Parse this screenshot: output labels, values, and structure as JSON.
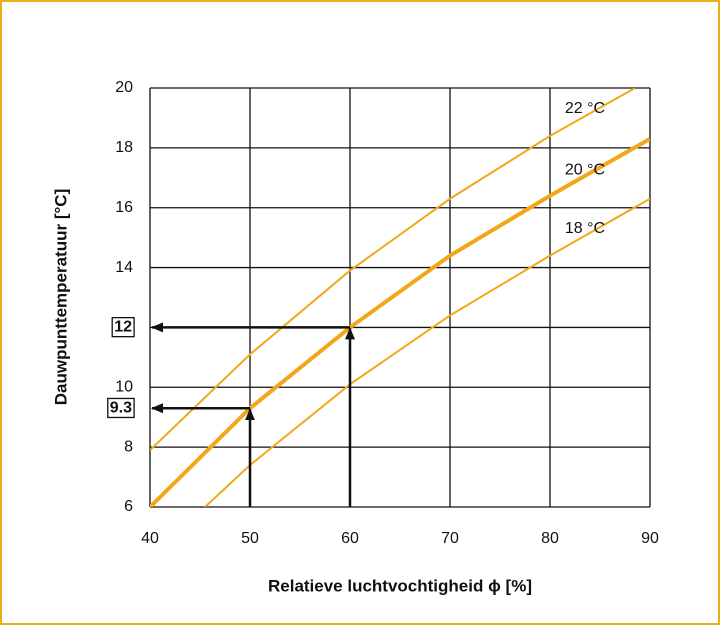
{
  "chart_data": {
    "type": "line",
    "x_label": "Relatieve luchtvochtigheid ϕ [%]",
    "y_label": "Dauwpunttemperatuur [°C]",
    "xlim": [
      40,
      90
    ],
    "xticks": [
      40,
      50,
      60,
      70,
      80,
      90
    ],
    "ylim": [
      6,
      20
    ],
    "yticks": [
      6,
      8,
      10,
      12,
      14,
      16,
      18,
      20
    ],
    "grid": true,
    "series": [
      {
        "name": "22 °C",
        "color": "#f0a818",
        "x": [
          40,
          50,
          60,
          70,
          80,
          88.5
        ],
        "values": [
          7.9,
          11.1,
          13.9,
          16.3,
          18.4,
          20
        ]
      },
      {
        "name": "20 °C",
        "color": "#f0a818",
        "x": [
          40,
          50,
          60,
          70,
          80,
          90
        ],
        "values": [
          6.0,
          9.3,
          12.0,
          14.4,
          16.4,
          18.3
        ]
      },
      {
        "name": "18 °C",
        "color": "#f0a818",
        "x": [
          45.5,
          50,
          60,
          70,
          80,
          90
        ],
        "values": [
          6,
          7.4,
          10.1,
          12.4,
          14.4,
          16.3
        ]
      }
    ],
    "markers": [
      {
        "x": 60,
        "y": 12
      },
      {
        "x": 50,
        "y": 9.3
      }
    ]
  }
}
